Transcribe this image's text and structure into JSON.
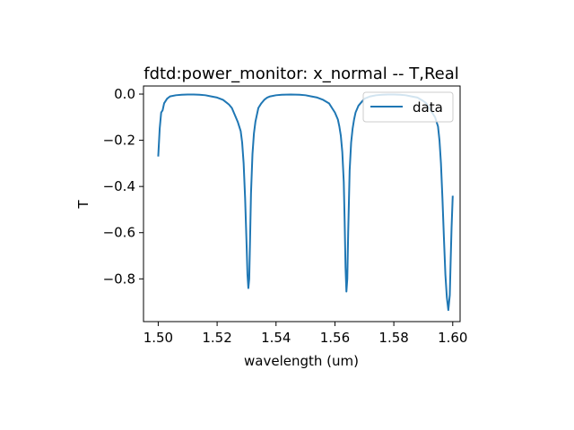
{
  "chart_data": {
    "type": "line",
    "title": "fdtd:power_monitor: x_normal -- T,Real",
    "xlabel": "wavelength (um)",
    "ylabel": "T",
    "xlim": [
      1.495,
      1.6025
    ],
    "ylim": [
      -0.985,
      0.035
    ],
    "xticks": [
      1.5,
      1.52,
      1.54,
      1.56,
      1.58,
      1.6
    ],
    "xtick_labels": [
      "1.50",
      "1.52",
      "1.54",
      "1.56",
      "1.58",
      "1.60"
    ],
    "yticks": [
      0.0,
      -0.2,
      -0.4,
      -0.6,
      -0.8
    ],
    "ytick_labels": [
      "0.0",
      "−0.2",
      "−0.4",
      "−0.6",
      "−0.8"
    ],
    "grid": false,
    "legend": {
      "location": "upper right",
      "entries": [
        "data"
      ]
    },
    "series": [
      {
        "name": "data",
        "color": "#1f77b4",
        "x": [
          1.5,
          1.5005,
          1.501,
          1.5015,
          1.502,
          1.503,
          1.504,
          1.506,
          1.508,
          1.51,
          1.512,
          1.514,
          1.516,
          1.518,
          1.52,
          1.522,
          1.524,
          1.525,
          1.526,
          1.527,
          1.528,
          1.5285,
          1.529,
          1.5295,
          1.53,
          1.5303,
          1.5306,
          1.5309,
          1.5312,
          1.5315,
          1.532,
          1.5325,
          1.533,
          1.5335,
          1.534,
          1.535,
          1.536,
          1.537,
          1.538,
          1.54,
          1.542,
          1.545,
          1.548,
          1.55,
          1.552,
          1.554,
          1.556,
          1.558,
          1.559,
          1.56,
          1.561,
          1.5615,
          1.562,
          1.5625,
          1.563,
          1.5633,
          1.5636,
          1.5639,
          1.5642,
          1.5645,
          1.565,
          1.5655,
          1.566,
          1.5665,
          1.567,
          1.568,
          1.569,
          1.57,
          1.572,
          1.574,
          1.576,
          1.578,
          1.58,
          1.582,
          1.584,
          1.586,
          1.588,
          1.59,
          1.591,
          1.592,
          1.593,
          1.594,
          1.595,
          1.5955,
          1.596,
          1.5965,
          1.597,
          1.5975,
          1.598,
          1.5985,
          1.599,
          1.5993,
          1.5996,
          1.6
        ],
        "y": [
          -0.27,
          -0.15,
          -0.08,
          -0.07,
          -0.04,
          -0.02,
          -0.01,
          -0.005,
          -0.003,
          -0.002,
          -0.002,
          -0.003,
          -0.005,
          -0.01,
          -0.015,
          -0.025,
          -0.045,
          -0.06,
          -0.09,
          -0.12,
          -0.16,
          -0.21,
          -0.3,
          -0.45,
          -0.65,
          -0.78,
          -0.84,
          -0.8,
          -0.62,
          -0.43,
          -0.26,
          -0.17,
          -0.12,
          -0.09,
          -0.06,
          -0.04,
          -0.025,
          -0.015,
          -0.01,
          -0.005,
          -0.003,
          -0.002,
          -0.003,
          -0.005,
          -0.01,
          -0.015,
          -0.025,
          -0.04,
          -0.06,
          -0.08,
          -0.11,
          -0.14,
          -0.18,
          -0.25,
          -0.38,
          -0.55,
          -0.75,
          -0.855,
          -0.8,
          -0.6,
          -0.33,
          -0.21,
          -0.15,
          -0.11,
          -0.08,
          -0.05,
          -0.035,
          -0.02,
          -0.01,
          -0.005,
          -0.003,
          -0.002,
          -0.002,
          -0.003,
          -0.005,
          -0.01,
          -0.015,
          -0.03,
          -0.04,
          -0.06,
          -0.08,
          -0.1,
          -0.14,
          -0.2,
          -0.3,
          -0.45,
          -0.62,
          -0.78,
          -0.88,
          -0.935,
          -0.87,
          -0.72,
          -0.58,
          -0.44
        ]
      }
    ]
  }
}
